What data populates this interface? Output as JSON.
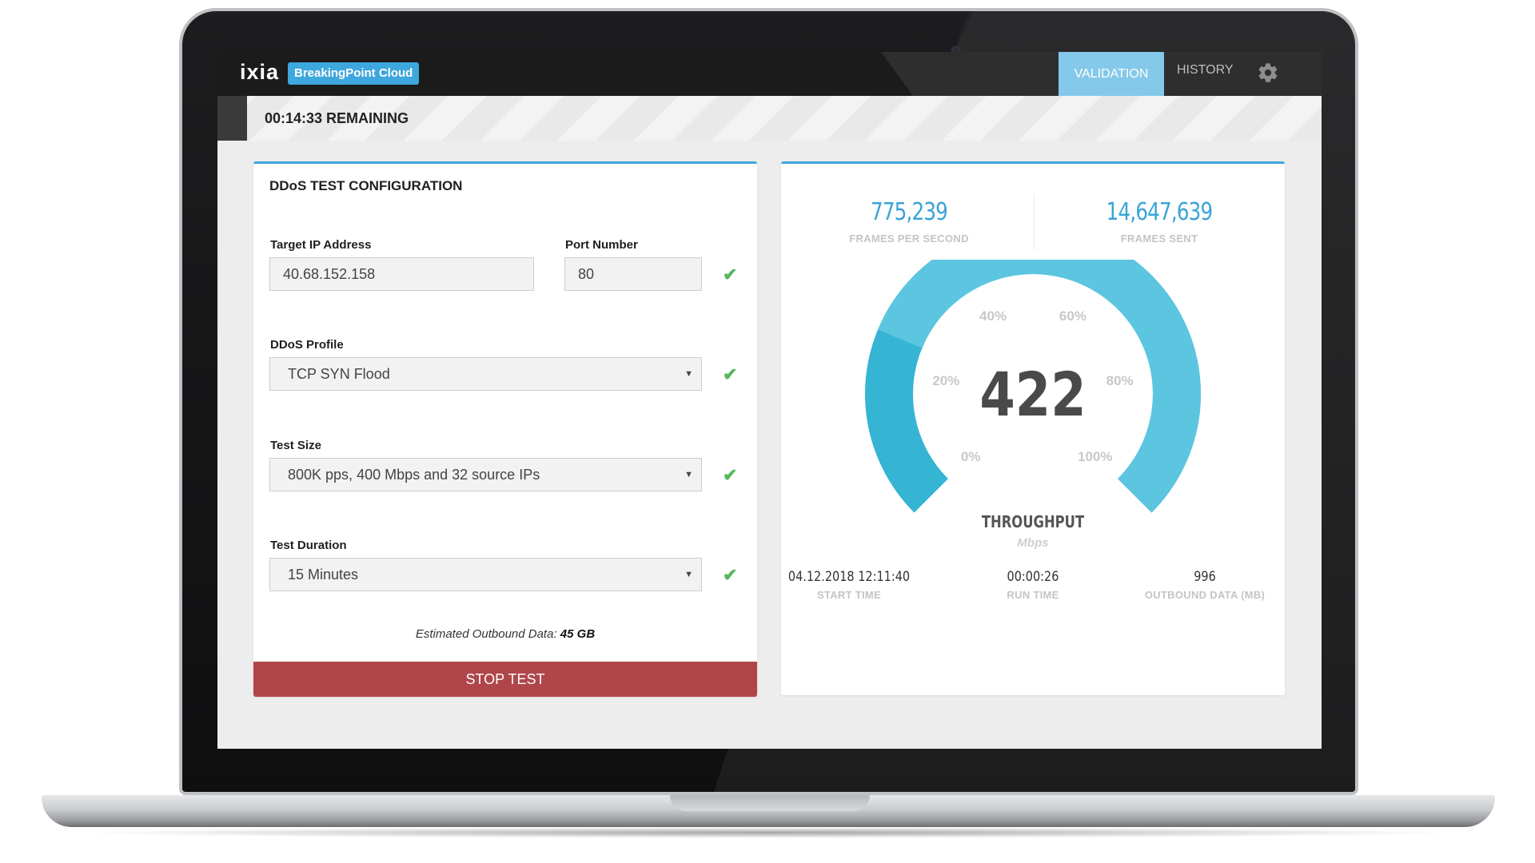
{
  "header": {
    "logo_main": "ixia",
    "logo_product": "BreakingPoint Cloud",
    "nav": {
      "validation": "VALIDATION",
      "history": "HISTORY"
    }
  },
  "status": {
    "remaining": "00:14:33 REMAINING"
  },
  "config": {
    "title": "DDoS TEST CONFIGURATION",
    "target_ip": {
      "label": "Target IP Address",
      "value": "40.68.152.158"
    },
    "port": {
      "label": "Port Number",
      "value": "80"
    },
    "profile": {
      "label": "DDoS Profile",
      "value": "TCP SYN Flood"
    },
    "test_size": {
      "label": "Test Size",
      "value": "800K pps, 400 Mbps and 32 source IPs"
    },
    "duration": {
      "label": "Test Duration",
      "value": "15 Minutes"
    },
    "estimate": {
      "label": "Estimated Outbound Data:",
      "value": "45 GB"
    },
    "stop_label": "STOP TEST",
    "check_glyph": "✔"
  },
  "stats": {
    "frames_per_second": {
      "value": "775,239",
      "label": "FRAMES PER SECOND"
    },
    "frames_sent": {
      "value": "14,647,639",
      "label": "FRAMES SENT"
    },
    "gauge": {
      "value": "422",
      "label": "THROUGHPUT",
      "unit": "Mbps",
      "ticks": [
        "0%",
        "20%",
        "40%",
        "60%",
        "80%",
        "100%"
      ],
      "fill_fraction": 0.25,
      "colors": {
        "arc": "#35b4d4",
        "arc_highlight": "#5cc5e0"
      }
    },
    "start_time": {
      "value": "04.12.2018 12:11:40",
      "label": "START TIME"
    },
    "run_time": {
      "value": "00:00:26",
      "label": "RUN TIME"
    },
    "outbound_data": {
      "value": "996",
      "label": "OUTBOUND DATA (MB)"
    }
  },
  "colors": {
    "accent": "#3ea7dd",
    "nav_active": "#84c8ea",
    "stop": "#b0464a",
    "check": "#57b65e"
  }
}
